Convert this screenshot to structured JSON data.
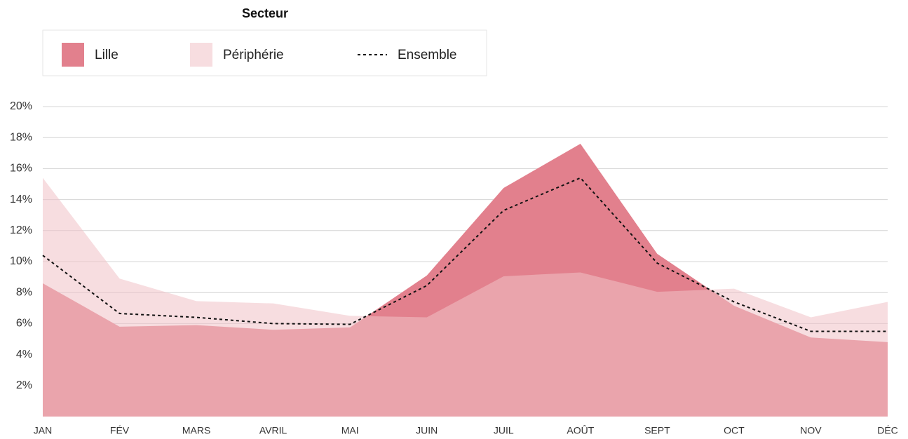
{
  "chart_data": {
    "type": "area",
    "legend_title": "Secteur",
    "categories": [
      "JAN",
      "FÉV",
      "MARS",
      "AVRIL",
      "MAI",
      "JUIN",
      "JUIL",
      "AOÛT",
      "SEPT",
      "OCT",
      "NOV",
      "DÉC"
    ],
    "series": [
      {
        "name": "Lille",
        "style": "area",
        "color": "#e2808d",
        "values": [
          8.6,
          5.8,
          5.9,
          5.6,
          5.75,
          9.1,
          14.75,
          17.6,
          10.5,
          7.15,
          5.1,
          4.8
        ]
      },
      {
        "name": "Périphérie",
        "style": "area",
        "color": "#f0c1c7",
        "values": [
          15.4,
          8.9,
          7.45,
          7.3,
          6.5,
          6.4,
          9.05,
          9.3,
          8.05,
          8.25,
          6.4,
          7.4
        ]
      },
      {
        "name": "Ensemble",
        "style": "dotted",
        "color": "#111111",
        "values": [
          10.4,
          6.65,
          6.4,
          6.0,
          5.95,
          8.45,
          13.3,
          15.4,
          9.9,
          7.4,
          5.5,
          5.5
        ]
      }
    ],
    "ylim": [
      0,
      20
    ],
    "yticks": [
      {
        "value": 2,
        "label": "2%"
      },
      {
        "value": 4,
        "label": "4%"
      },
      {
        "value": 6,
        "label": "6%"
      },
      {
        "value": 8,
        "label": "8%"
      },
      {
        "value": 10,
        "label": "10%"
      },
      {
        "value": 12,
        "label": "12%"
      },
      {
        "value": 14,
        "label": "14%"
      },
      {
        "value": 16,
        "label": "16%"
      },
      {
        "value": 18,
        "label": "18%"
      },
      {
        "value": 20,
        "label": "20%"
      }
    ],
    "grid": true
  }
}
